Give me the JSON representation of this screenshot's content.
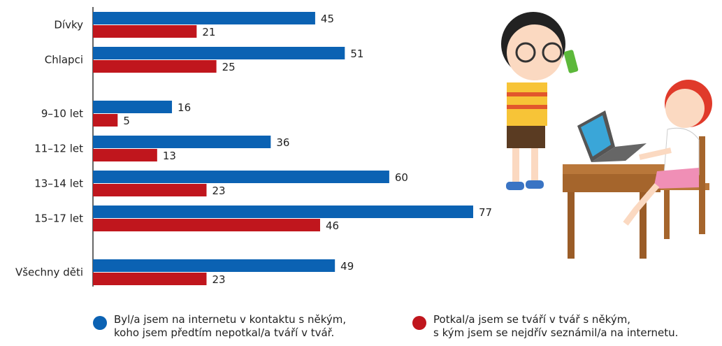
{
  "chart_data": {
    "type": "bar",
    "orientation": "horizontal",
    "categories": [
      "Dívky",
      "Chlapci",
      "9–10 let",
      "11–12 let",
      "13–14 let",
      "15–17 let",
      "Všechny děti"
    ],
    "series": [
      {
        "name": "Byl/a jsem na internetu v kontaktu s někým,\nkoho jsem předtím nepotkal/a tváří v tvář.",
        "color": "#0b62b3",
        "values": [
          45,
          51,
          16,
          36,
          60,
          77,
          49
        ]
      },
      {
        "name": "Potkal/a jsem se tváří v tvář s někým,\ns kým jsem se nejdřív seznámil/a na internetu.",
        "color": "#c0161d",
        "values": [
          21,
          25,
          5,
          13,
          23,
          46,
          23
        ]
      }
    ]
  }
}
